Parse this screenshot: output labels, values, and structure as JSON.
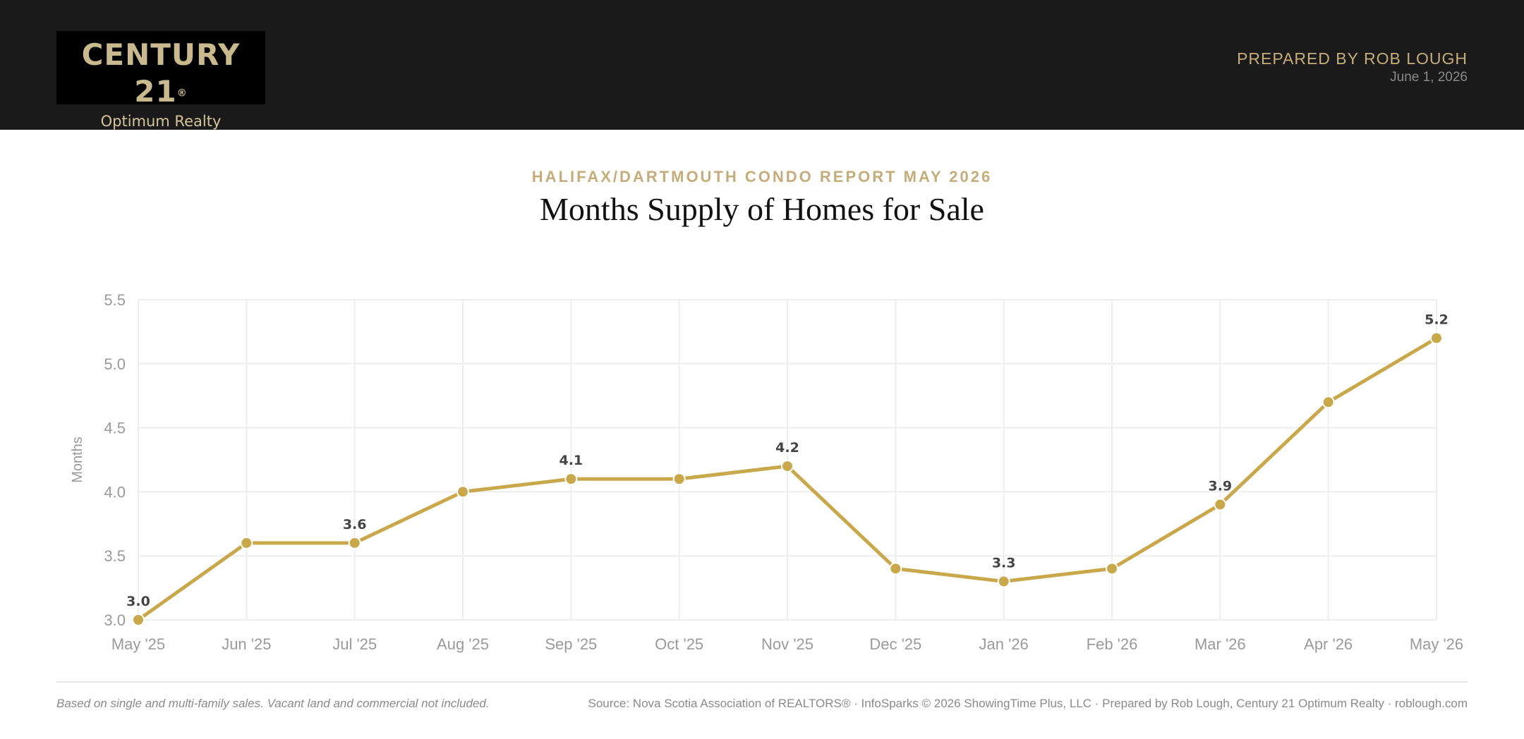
{
  "header": {
    "logo_brand": "CENTURY 21",
    "logo_reg": "®",
    "logo_sub": "Optimum Realty",
    "prepared_by": "PREPARED BY ROB LOUGH",
    "date": "June 1, 2026"
  },
  "report": {
    "eyebrow": "HALIFAX/DARTMOUTH CONDO REPORT MAY 2026",
    "title": "Months Supply of Homes for Sale"
  },
  "chart_data": {
    "type": "line",
    "categories": [
      "May '25",
      "Jun '25",
      "Jul '25",
      "Aug '25",
      "Sep '25",
      "Oct '25",
      "Nov '25",
      "Dec '25",
      "Jan '26",
      "Feb '26",
      "Mar '26",
      "Apr '26",
      "May '26"
    ],
    "values": [
      3.0,
      3.6,
      3.6,
      4.0,
      4.1,
      4.1,
      4.2,
      3.4,
      3.3,
      3.4,
      3.9,
      4.7,
      5.2
    ],
    "data_labels": [
      {
        "index": 0,
        "text": "3.0"
      },
      {
        "index": 2,
        "text": "3.6"
      },
      {
        "index": 4,
        "text": "4.1"
      },
      {
        "index": 6,
        "text": "4.2"
      },
      {
        "index": 8,
        "text": "3.3"
      },
      {
        "index": 10,
        "text": "3.9"
      },
      {
        "index": 12,
        "text": "5.2"
      }
    ],
    "ylabel": "Months",
    "ylim": [
      3.0,
      5.5
    ],
    "yticks": [
      "3.0",
      "3.5",
      "4.0",
      "4.5",
      "5.0",
      "5.5"
    ],
    "grid": true,
    "line_color": "#c9a84c"
  },
  "footer": {
    "note": "Based on single and multi-family sales. Vacant land and commercial not included.",
    "source": "Source: Nova Scotia Association of REALTORS® · InfoSparks © 2026 ShowingTime Plus, LLC · Prepared by Rob Lough, Century 21 Optimum Realty · roblough.com"
  }
}
